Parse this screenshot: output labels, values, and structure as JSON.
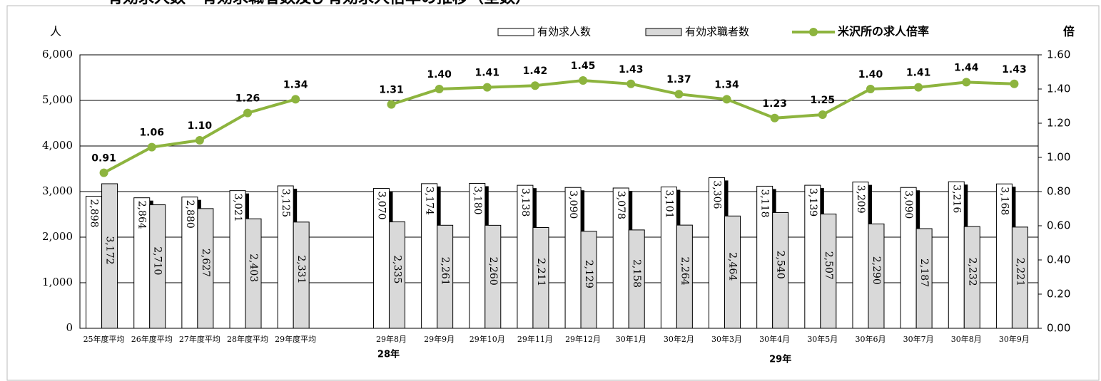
{
  "chart_data": {
    "type": "bar_line",
    "title": "有効求人数・有効求職者数及び有効求人倍率の推移（全数）",
    "y_label": "人",
    "y2_label": "倍",
    "categories": [
      "25年度平均",
      "26年度平均",
      "27年度平均",
      "28年度平均",
      "29年度平均",
      null,
      "29年8月",
      "29年9月",
      "29年10月",
      "29年11月",
      "29年12月",
      "30年1月",
      "30年2月",
      "30年3月",
      "30年4月",
      "30年5月",
      "30年6月",
      "30年7月",
      "30年8月",
      "30年9月"
    ],
    "annotations": [
      "28年",
      "29年"
    ],
    "series": [
      {
        "name": "有効求人数",
        "type": "bar",
        "color": "#ffffff",
        "values": [
          2898,
          2864,
          2880,
          3021,
          3125,
          null,
          3070,
          3174,
          3180,
          3138,
          3090,
          3078,
          3101,
          3306,
          3118,
          3139,
          3209,
          3090,
          3216,
          3168
        ],
        "value_labels": [
          "2,898",
          "2,864",
          "2,880",
          "3,021",
          "3,125",
          null,
          "3,070",
          "3,174",
          "3,180",
          "3,138",
          "3,090",
          "3,078",
          "3,101",
          "3,306",
          "3,118",
          "3,139",
          "3,209",
          "3,090",
          "3,216",
          "3,168"
        ]
      },
      {
        "name": "有効求職者数",
        "type": "bar",
        "color": "#d9d9d9",
        "values": [
          3172,
          2710,
          2627,
          2403,
          2331,
          null,
          2335,
          2261,
          2260,
          2211,
          2129,
          2158,
          2264,
          2464,
          2540,
          2507,
          2290,
          2187,
          2232,
          2221
        ],
        "value_labels": [
          "3,172",
          "2,710",
          "2,627",
          "2,403",
          "2,331",
          null,
          "2,335",
          "2,261",
          "2,260",
          "2,211",
          "2,129",
          "2,158",
          "2,264",
          "2,464",
          "2,540",
          "2,507",
          "2,290",
          "2,187",
          "2,232",
          "2,221"
        ]
      },
      {
        "name": "米沢所の求人倍率",
        "type": "line",
        "axis": "y2",
        "color": "#8db43e",
        "values": [
          0.91,
          1.06,
          1.1,
          1.26,
          1.34,
          null,
          1.31,
          1.4,
          1.41,
          1.42,
          1.45,
          1.43,
          1.37,
          1.34,
          1.23,
          1.25,
          1.4,
          1.41,
          1.44,
          1.43
        ],
        "value_labels": [
          "0.91",
          "1.06",
          "1.10",
          "1.26",
          "1.34",
          null,
          "1.31",
          "1.40",
          "1.41",
          "1.42",
          "1.45",
          "1.43",
          "1.37",
          "1.34",
          "1.23",
          "1.25",
          "1.40",
          "1.41",
          "1.44",
          "1.43"
        ]
      }
    ],
    "ylim": [
      0,
      6000
    ],
    "yticks": [
      0,
      {
        "value": 1000,
        "label": "1,000"
      },
      {
        "value": 2000,
        "label": "2,000"
      },
      {
        "value": 3000,
        "label": "3,000"
      },
      {
        "value": 4000,
        "label": "4,000"
      },
      {
        "value": 5000,
        "label": "5,000"
      },
      {
        "value": 6000,
        "label": "6,000"
      }
    ],
    "y2lim": [
      0,
      1.6
    ],
    "y2ticks": [
      {
        "value": 0,
        "label": "0.00"
      },
      {
        "value": 0.2,
        "label": "0.20"
      },
      {
        "value": 0.4,
        "label": "0.40"
      },
      {
        "value": 0.6,
        "label": "0.60"
      },
      {
        "value": 0.8,
        "label": "0.80"
      },
      {
        "value": 1,
        "label": "1.00"
      },
      {
        "value": 1.2,
        "label": "1.20"
      },
      {
        "value": 1.4,
        "label": "1.40"
      },
      {
        "value": 1.6,
        "label": "1.60"
      }
    ],
    "grid": true,
    "legend": "top"
  }
}
